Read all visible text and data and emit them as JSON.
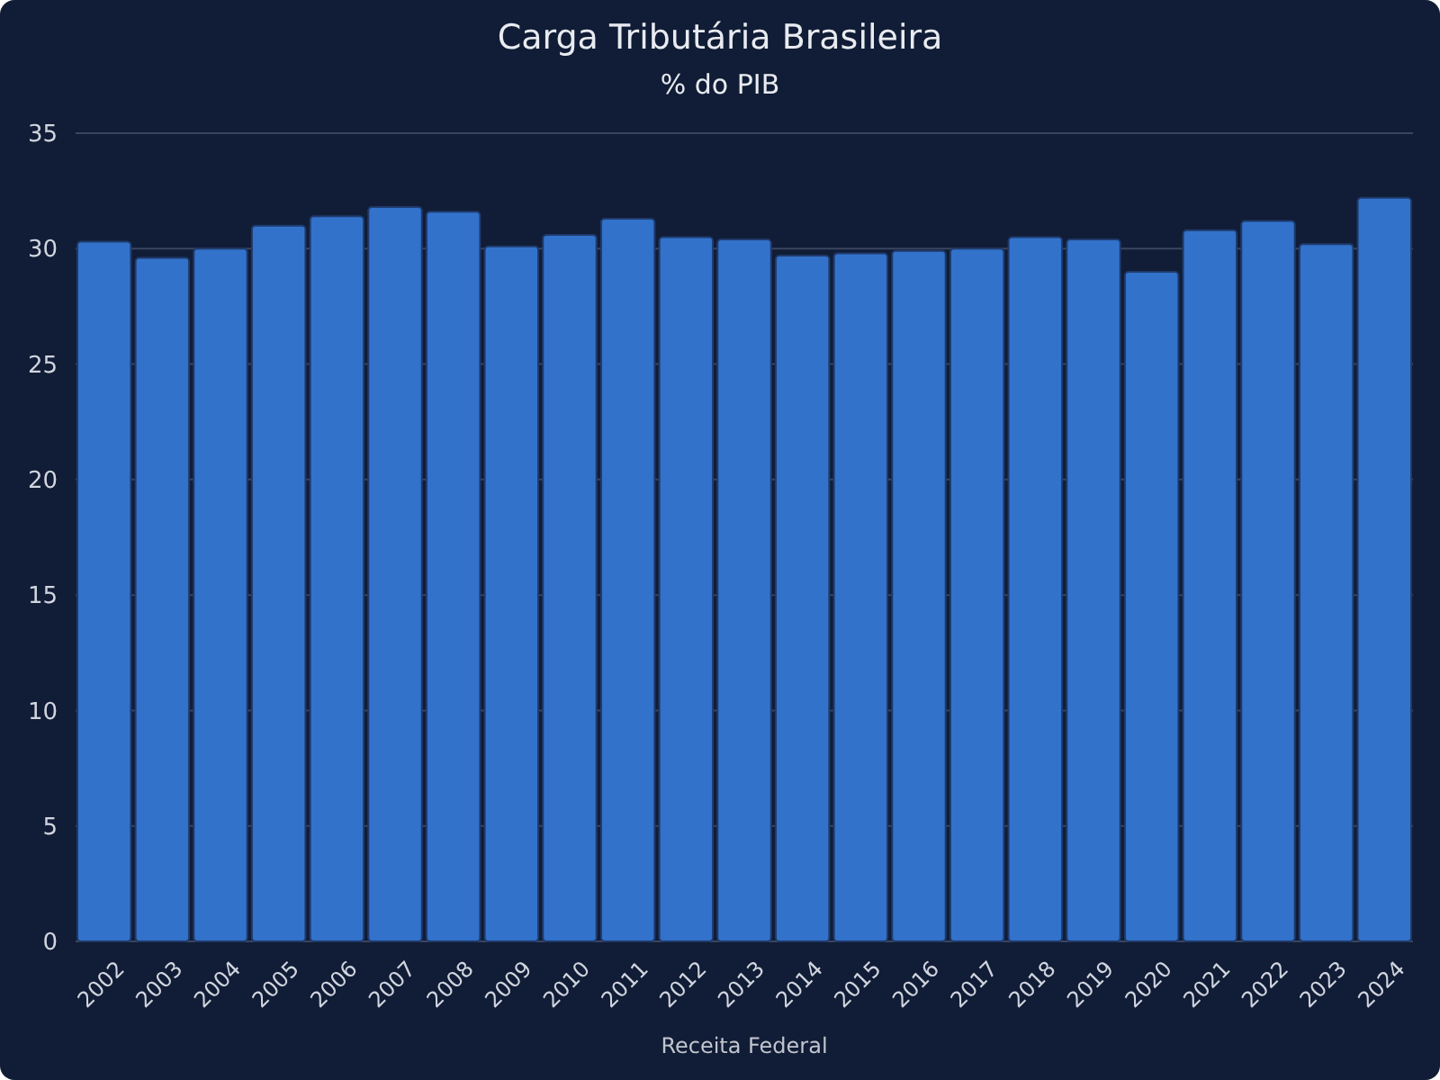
{
  "chart_data": {
    "type": "bar",
    "title": "Carga Tributária Brasileira",
    "subtitle": "% do PIB",
    "categories": [
      "2002",
      "2003",
      "2004",
      "2005",
      "2006",
      "2007",
      "2008",
      "2009",
      "2010",
      "2011",
      "2012",
      "2013",
      "2014",
      "2015",
      "2016",
      "2017",
      "2018",
      "2019",
      "2020",
      "2021",
      "2022",
      "2023",
      "2024"
    ],
    "values": [
      30.3,
      29.6,
      30.0,
      31.0,
      31.4,
      31.8,
      31.6,
      30.1,
      30.6,
      31.3,
      30.5,
      30.4,
      29.7,
      29.8,
      29.9,
      30.0,
      30.5,
      30.4,
      29.0,
      30.8,
      31.2,
      30.2,
      32.2
    ],
    "color": "#3272cb",
    "ylim": [
      0,
      35
    ],
    "yticks": [
      0,
      5,
      10,
      15,
      20,
      25,
      30,
      35
    ],
    "grid": "y",
    "annotations": [
      "Receita Federal"
    ]
  }
}
